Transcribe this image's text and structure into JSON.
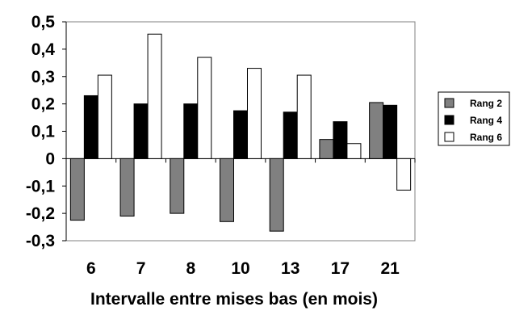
{
  "chart_data": {
    "type": "bar",
    "title": "",
    "xlabel": "Intervalle entre mises bas (en mois)",
    "ylabel": "",
    "categories": [
      "6",
      "7",
      "8",
      "10",
      "13",
      "17",
      "21"
    ],
    "ylim": [
      -0.3,
      0.5
    ],
    "yticks": [
      -0.3,
      -0.2,
      -0.1,
      0,
      0.1,
      0.2,
      0.3,
      0.4,
      0.5
    ],
    "ytick_labels": [
      "-0,3",
      "-0,2",
      "-0,1",
      "0",
      "0,1",
      "0,2",
      "0,3",
      "0,4",
      "0,5"
    ],
    "grid": false,
    "legend_position": "right",
    "series": [
      {
        "name": "Rang 2",
        "color": "#808080",
        "values": [
          -0.225,
          -0.21,
          -0.2,
          -0.23,
          -0.265,
          0.07,
          0.205
        ]
      },
      {
        "name": "Rang 4",
        "color": "#000000",
        "values": [
          0.23,
          0.2,
          0.2,
          0.175,
          0.17,
          0.135,
          0.195
        ]
      },
      {
        "name": "Rang 6",
        "color": "#ffffff",
        "values": [
          0.305,
          0.455,
          0.37,
          0.33,
          0.305,
          0.055,
          -0.115
        ]
      }
    ]
  }
}
